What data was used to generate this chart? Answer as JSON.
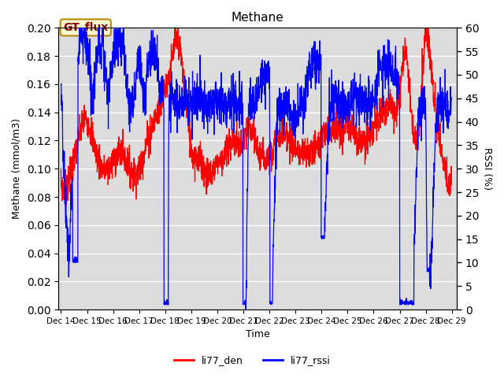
{
  "title": "Methane",
  "ylabel_left": "Methane (mmol/m3)",
  "ylabel_right": "RSSI (%)",
  "xlabel": "Time",
  "ylim_left": [
    0.0,
    0.2
  ],
  "ylim_right": [
    0,
    60
  ],
  "yticks_left": [
    0.0,
    0.02,
    0.04,
    0.06,
    0.08,
    0.1,
    0.12,
    0.14,
    0.16,
    0.18,
    0.2
  ],
  "yticks_right": [
    0,
    5,
    10,
    15,
    20,
    25,
    30,
    35,
    40,
    45,
    50,
    55,
    60
  ],
  "color_red": "#FF0000",
  "color_blue": "#0000FF",
  "bg_color": "#DCDCDC",
  "annotation_text": "GT_flux",
  "annotation_color": "#8B0000",
  "annotation_bg": "#FFFACD",
  "annotation_border": "#B8860B",
  "legend_labels": [
    "li77_den",
    "li77_rssi"
  ],
  "xtick_labels": [
    "Dec 14",
    "Dec 15",
    "Dec 16",
    "Dec 17",
    "Dec 18",
    "Dec 19",
    "Dec 20",
    "Dec 21",
    "Dec 22",
    "Dec 23",
    "Dec 24",
    "Dec 25",
    "Dec 26",
    "Dec 27",
    "Dec 28",
    "Dec 29"
  ],
  "n_points": 2000
}
